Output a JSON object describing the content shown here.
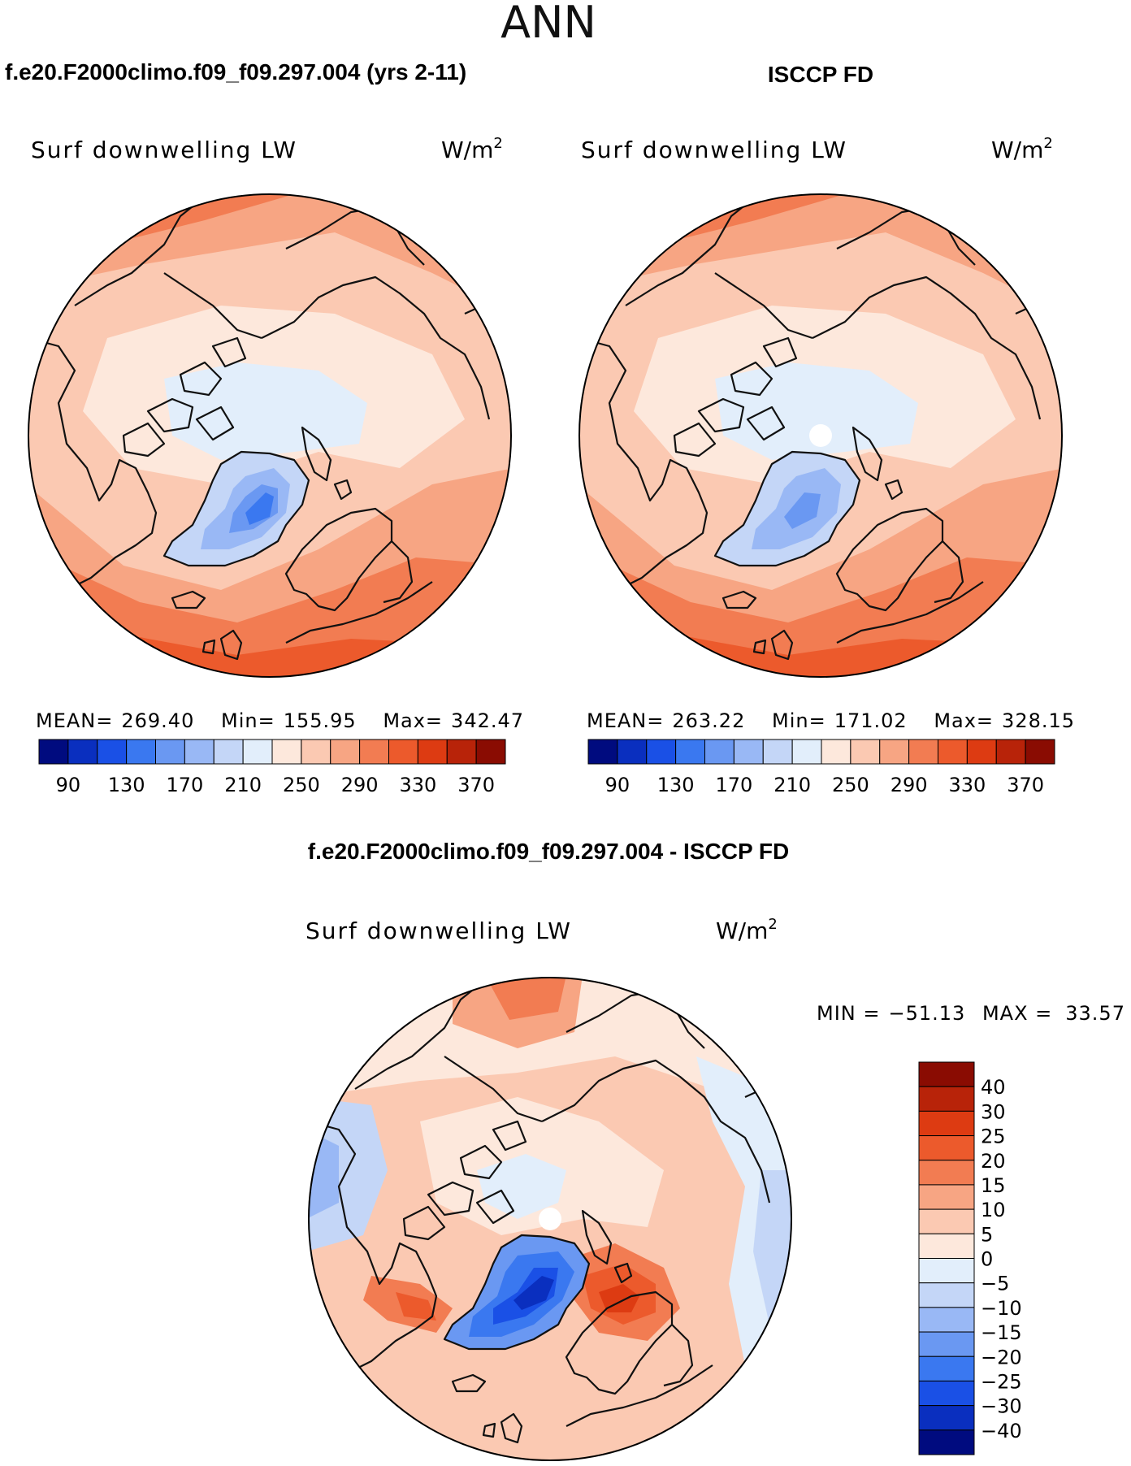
{
  "figure": {
    "season": "ANN",
    "left_title": "f.e20.F2000climo.f09_f09.297.004 (yrs 2-11)",
    "right_title": "ISCCP FD",
    "diff_title": "f.e20.F2000climo.f09_f09.297.004 - ISCCP FD"
  },
  "panels": [
    {
      "variable": "Surf downwelling LW",
      "units_base": "W/m",
      "units_exp": "2",
      "mean_label": "MEAN=",
      "mean": "269.40",
      "min_label": "Min=",
      "min": "155.95",
      "max_label": "Max=",
      "max": "342.47"
    },
    {
      "variable": "Surf downwelling LW",
      "units_base": "W/m",
      "units_exp": "2",
      "mean_label": "MEAN=",
      "mean": "263.22",
      "min_label": "Min=",
      "min": "171.02",
      "max_label": "Max=",
      "max": "328.15"
    }
  ],
  "diff_panel": {
    "variable": "Surf downwelling LW",
    "units_base": "W/m",
    "units_exp": "2",
    "min_label": "MIN =",
    "min": "−51.13",
    "max_label": "MAX =",
    "max": "33.57"
  },
  "chart_data": {
    "type": "heatmap",
    "projection": "north-polar-stereographic",
    "abs_colorbar": {
      "ticks": [
        "90",
        "130",
        "170",
        "210",
        "250",
        "290",
        "330",
        "370"
      ],
      "colors": [
        "#000b7f",
        "#0a2fbf",
        "#1a50e6",
        "#3a78f0",
        "#6a98f2",
        "#99b8f5",
        "#c4d6f7",
        "#e2eefb",
        "#fde8dc",
        "#fbc9b2",
        "#f7a583",
        "#f27c52",
        "#ec5a2c",
        "#dd3b12",
        "#b82309",
        "#8a0c02"
      ]
    },
    "diff_colorbar": {
      "ticks": [
        "40",
        "30",
        "25",
        "20",
        "15",
        "10",
        "5",
        "0",
        "−5",
        "−10",
        "−15",
        "−20",
        "−25",
        "−30",
        "−40"
      ],
      "colors": [
        "#8a0c02",
        "#b82309",
        "#dd3b12",
        "#ec5a2c",
        "#f27c52",
        "#f7a583",
        "#fbc9b2",
        "#fde8dc",
        "#e2eefb",
        "#c4d6f7",
        "#99b8f5",
        "#6a98f2",
        "#3a78f0",
        "#1a50e6",
        "#0a2fbf",
        "#000b7f"
      ]
    }
  }
}
